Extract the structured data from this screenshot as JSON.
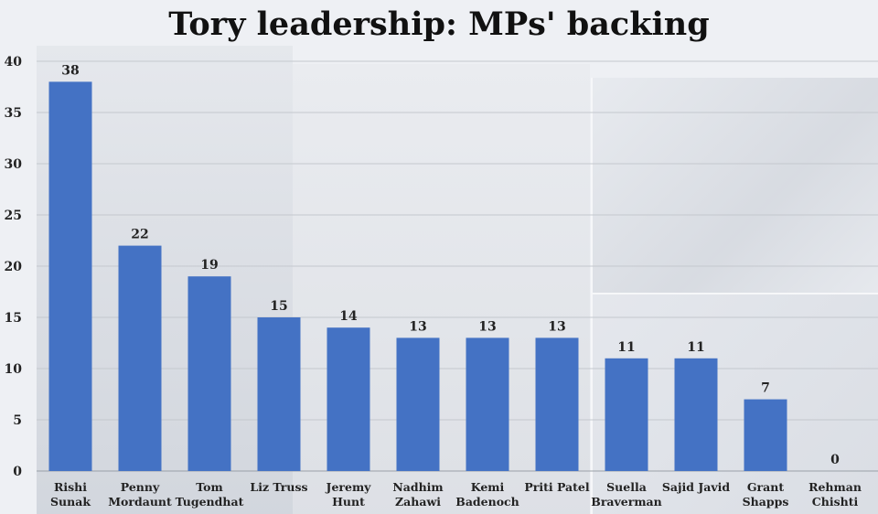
{
  "chart_data": {
    "type": "bar",
    "title": "Tory leadership: MPs' backing",
    "xlabel": "",
    "ylabel": "",
    "ylim": [
      0,
      40
    ],
    "yticks": [
      0,
      5,
      10,
      15,
      20,
      25,
      30,
      35,
      40
    ],
    "grid": true,
    "bar_color": "#4472c4",
    "categories": [
      [
        "Rishi",
        "Sunak"
      ],
      [
        "Penny",
        "Mordaunt"
      ],
      [
        "Tom",
        "Tugendhat"
      ],
      [
        "Liz Truss"
      ],
      [
        "Jeremy",
        "Hunt"
      ],
      [
        "Nadhim",
        "Zahawi"
      ],
      [
        "Kemi",
        "Badenoch"
      ],
      [
        "Priti Patel"
      ],
      [
        "Suella",
        "Braverman"
      ],
      [
        "Sajid Javid"
      ],
      [
        "Grant",
        "Shapps"
      ],
      [
        "Rehman",
        "Chishti"
      ]
    ],
    "values": [
      38,
      22,
      19,
      15,
      14,
      13,
      13,
      13,
      11,
      11,
      7,
      0
    ]
  }
}
